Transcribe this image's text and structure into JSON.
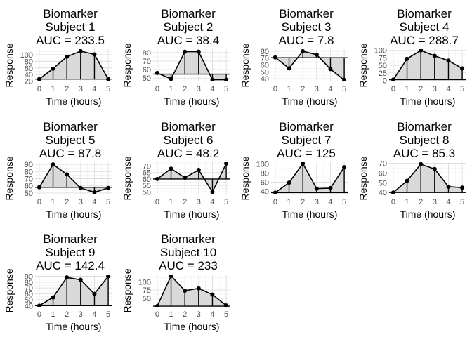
{
  "chart_data": [
    {
      "type": "area",
      "title": "Biomarker\nSubject 1\nAUC = 233.5",
      "xlabel": "Time (hours)",
      "ylabel": "Response",
      "x": [
        0,
        1,
        2,
        3,
        4,
        5
      ],
      "values": [
        26,
        58,
        94,
        111,
        101,
        26
      ],
      "baseline": 26,
      "yticks": [
        20,
        40,
        60,
        80,
        100
      ],
      "ylim": [
        19,
        117
      ],
      "xlim": [
        -0.3,
        5.3
      ],
      "grid": true
    },
    {
      "type": "area",
      "title": "Biomarker\nSubject 2\nAUC = 38.4",
      "xlabel": "Time (hours)",
      "ylabel": "Response",
      "x": [
        0,
        1,
        2,
        3,
        4,
        5
      ],
      "values": [
        56,
        49,
        81,
        81,
        48,
        48
      ],
      "baseline": 54.6,
      "yticks": [
        50,
        60,
        70,
        80
      ],
      "ylim": [
        46,
        84
      ],
      "xlim": [
        -0.3,
        5.3
      ],
      "grid": true
    },
    {
      "type": "area",
      "title": "Biomarker\nSubject 3\nAUC = 7.8",
      "xlabel": "Time (hours)",
      "ylabel": "Response",
      "x": [
        0,
        1,
        2,
        3,
        4,
        5
      ],
      "values": [
        71,
        55,
        80,
        75,
        54,
        38
      ],
      "baseline": 70.5,
      "yticks": [
        40,
        50,
        60,
        70,
        80
      ],
      "ylim": [
        36,
        83
      ],
      "xlim": [
        -0.3,
        5.3
      ],
      "grid": true
    },
    {
      "type": "area",
      "title": "Biomarker\nSubject 4\nAUC = 288.7",
      "xlabel": "Time (hours)",
      "ylabel": "Response",
      "x": [
        0,
        1,
        2,
        3,
        4,
        5
      ],
      "values": [
        3,
        72,
        100,
        82,
        66,
        40
      ],
      "baseline": 3,
      "yticks": [
        0,
        25,
        50,
        75,
        100
      ],
      "ylim": [
        -3,
        104
      ],
      "xlim": [
        -0.3,
        5.3
      ],
      "grid": true
    },
    {
      "type": "area",
      "title": "Biomarker\nSubject 5\nAUC = 87.8",
      "xlabel": "Time (hours)",
      "ylabel": "Response",
      "x": [
        0,
        1,
        2,
        3,
        4,
        5
      ],
      "values": [
        58,
        90,
        76,
        57,
        51,
        57
      ],
      "baseline": 58,
      "yticks": [
        50,
        60,
        70,
        80,
        90
      ],
      "ylim": [
        48,
        93
      ],
      "xlim": [
        -0.3,
        5.3
      ],
      "grid": true
    },
    {
      "type": "area",
      "title": "Biomarker\nSubject 6\nAUC = 48.2",
      "xlabel": "Time (hours)",
      "ylabel": "Response",
      "x": [
        0,
        1,
        2,
        3,
        4,
        5
      ],
      "values": [
        60,
        68,
        61,
        67,
        50,
        72
      ],
      "baseline": 60,
      "yticks": [
        50,
        55,
        60,
        65,
        70
      ],
      "ylim": [
        48,
        73
      ],
      "xlim": [
        -0.3,
        5.3
      ],
      "grid": true
    },
    {
      "type": "area",
      "title": "Biomarker\nSubject 7\nAUC = 125",
      "xlabel": "Time (hours)",
      "ylabel": "Response",
      "x": [
        0,
        1,
        2,
        3,
        4,
        5
      ],
      "values": [
        37,
        59,
        101,
        46,
        47,
        93
      ],
      "baseline": 37,
      "yticks": [
        40,
        60,
        80,
        100
      ],
      "ylim": [
        33,
        104
      ],
      "xlim": [
        -0.3,
        5.3
      ],
      "grid": true
    },
    {
      "type": "area",
      "title": "Biomarker\nSubject 8\nAUC = 85.3",
      "xlabel": "Time (hours)",
      "ylabel": "Response",
      "x": [
        0,
        1,
        2,
        3,
        4,
        5
      ],
      "values": [
        40,
        52,
        69,
        64,
        46,
        45
      ],
      "baseline": 40,
      "yticks": [
        40,
        50,
        60,
        70
      ],
      "ylim": [
        38,
        71
      ],
      "xlim": [
        -0.3,
        5.3
      ],
      "grid": true
    },
    {
      "type": "area",
      "title": "Biomarker\nSubject 9\nAUC = 142.4",
      "xlabel": "Time (hours)",
      "ylabel": "Response",
      "x": [
        0,
        1,
        2,
        3,
        4,
        5
      ],
      "values": [
        40,
        54,
        88,
        84,
        60,
        90
      ],
      "baseline": 40,
      "yticks": [
        40,
        50,
        60,
        70,
        80,
        90
      ],
      "ylim": [
        38,
        93
      ],
      "xlim": [
        -0.3,
        5.3
      ],
      "grid": true
    },
    {
      "type": "area",
      "title": "Biomarker\nSubject 10\nAUC = 233",
      "xlabel": "Time (hours)",
      "ylabel": "Response",
      "x": [
        0,
        1,
        2,
        3,
        4,
        5
      ],
      "values": [
        26,
        118,
        73,
        80,
        61,
        28
      ],
      "baseline": 26,
      "yticks": [
        50,
        75,
        100
      ],
      "ylim": [
        24,
        122
      ],
      "xlim": [
        -0.3,
        5.3
      ],
      "grid": true
    }
  ],
  "style": {
    "fill": "#d9d9d9",
    "line": "#000000",
    "grid_major": "#dddddd",
    "grid_minor": "#efefef"
  }
}
